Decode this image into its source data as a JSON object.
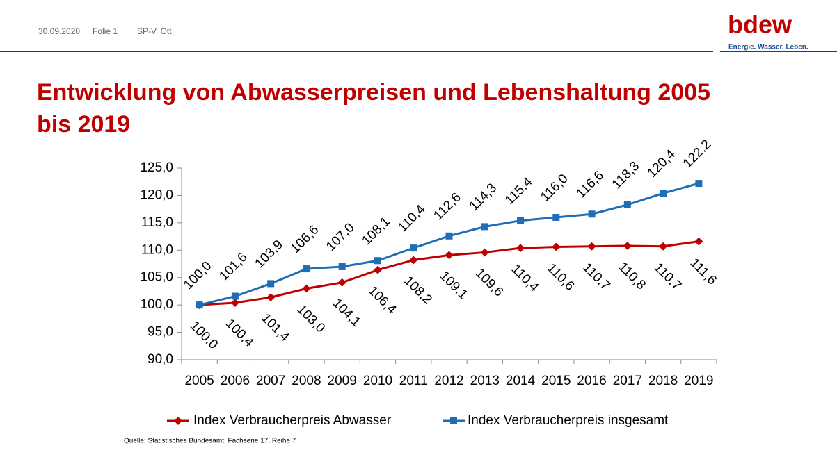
{
  "header": {
    "date": "30.09.2020",
    "slide": "Folie 1",
    "author": "SP-V, Ott"
  },
  "logo": {
    "name": "bdew",
    "tagline": "Energie. Wasser. Leben."
  },
  "chart_data": {
    "type": "line",
    "title": "Entwicklung von Abwasserpreisen und Lebenshaltung 2005 bis 2019",
    "categories": [
      "2005",
      "2006",
      "2007",
      "2008",
      "2009",
      "2010",
      "2011",
      "2012",
      "2013",
      "2014",
      "2015",
      "2016",
      "2017",
      "2018",
      "2019"
    ],
    "series": [
      {
        "name": "Index Verbraucherpreis Abwasser",
        "color": "#c00000",
        "marker": "diamond",
        "label_position": "below",
        "values": [
          100.0,
          100.4,
          101.4,
          103.0,
          104.1,
          106.4,
          108.2,
          109.1,
          109.6,
          110.4,
          110.6,
          110.7,
          110.8,
          110.7,
          111.6
        ],
        "value_labels": [
          "100,0",
          "100,4",
          "101,4",
          "103,0",
          "104,1",
          "106,4",
          "108,2",
          "109,1",
          "109,6",
          "110,4",
          "110,6",
          "110,7",
          "110,8",
          "110,7",
          "111,6"
        ]
      },
      {
        "name": "Index Verbraucherpreis insgesamt",
        "color": "#1f6db5",
        "marker": "square",
        "label_position": "above",
        "values": [
          100.0,
          101.6,
          103.9,
          106.6,
          107.0,
          108.1,
          110.4,
          112.6,
          114.3,
          115.4,
          116.0,
          116.6,
          118.3,
          120.4,
          122.2
        ],
        "value_labels": [
          "100,0",
          "101,6",
          "103,9",
          "106,6",
          "107,0",
          "108,1",
          "110,4",
          "112,6",
          "114,3",
          "115,4",
          "116,0",
          "116,6",
          "118,3",
          "120,4",
          "122,2"
        ]
      }
    ],
    "ylim": [
      90,
      125
    ],
    "yticks": [
      {
        "value": 90,
        "label": "90,0"
      },
      {
        "value": 95,
        "label": "95,0"
      },
      {
        "value": 100,
        "label": "100,0"
      },
      {
        "value": 105,
        "label": "105,0"
      },
      {
        "value": 110,
        "label": "110,0"
      },
      {
        "value": 115,
        "label": "115,0"
      },
      {
        "value": 120,
        "label": "120,0"
      },
      {
        "value": 125,
        "label": "125,0"
      }
    ],
    "grid": false,
    "legend": "bottom",
    "source": "Quelle: Statistisches Bundesamt, Fachserie 17, Reihe 7"
  }
}
